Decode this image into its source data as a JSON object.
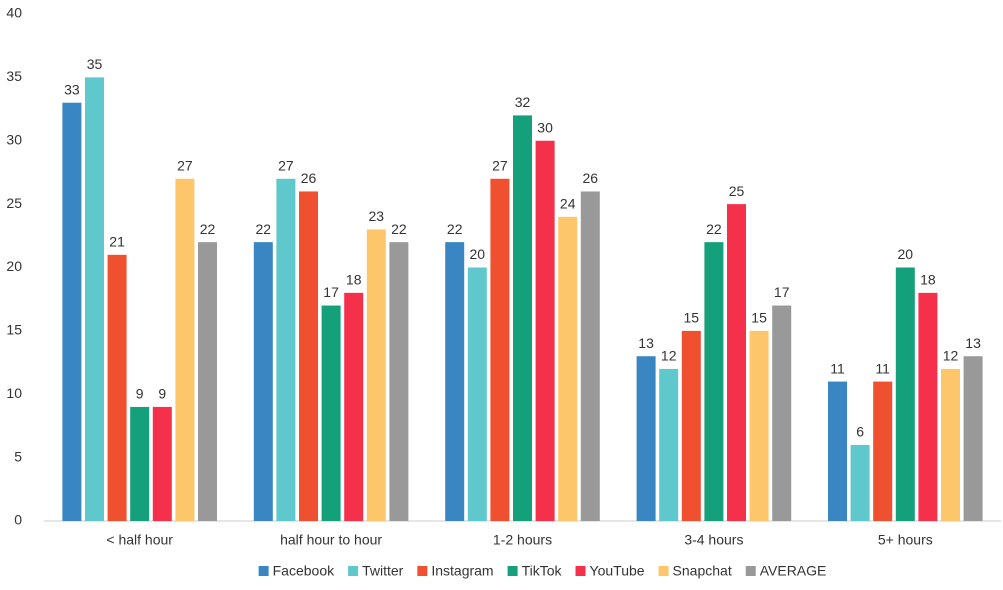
{
  "chart_data": {
    "type": "bar",
    "categories": [
      "< half hour",
      "half hour to hour",
      "1-2 hours",
      "3-4 hours",
      "5+ hours"
    ],
    "series": [
      {
        "name": "Facebook",
        "color": "#3a86c2",
        "values": [
          33,
          22,
          22,
          13,
          11
        ]
      },
      {
        "name": "Twitter",
        "color": "#5ec8cc",
        "values": [
          35,
          27,
          20,
          12,
          6
        ]
      },
      {
        "name": "Instagram",
        "color": "#ef5030",
        "values": [
          21,
          26,
          27,
          15,
          11
        ]
      },
      {
        "name": "TikTok",
        "color": "#14a07a",
        "values": [
          9,
          17,
          32,
          22,
          20
        ]
      },
      {
        "name": "YouTube",
        "color": "#f5304a",
        "values": [
          9,
          18,
          30,
          25,
          18
        ]
      },
      {
        "name": "Snapchat",
        "color": "#fdc66a",
        "values": [
          27,
          23,
          24,
          15,
          12
        ]
      },
      {
        "name": "AVERAGE",
        "color": "#999999",
        "values": [
          22,
          22,
          26,
          17,
          13
        ]
      }
    ],
    "ylim": [
      0,
      40
    ],
    "yticks": [
      0,
      5,
      10,
      15,
      20,
      25,
      30,
      35,
      40
    ],
    "grid": false,
    "legend": "bottom"
  }
}
